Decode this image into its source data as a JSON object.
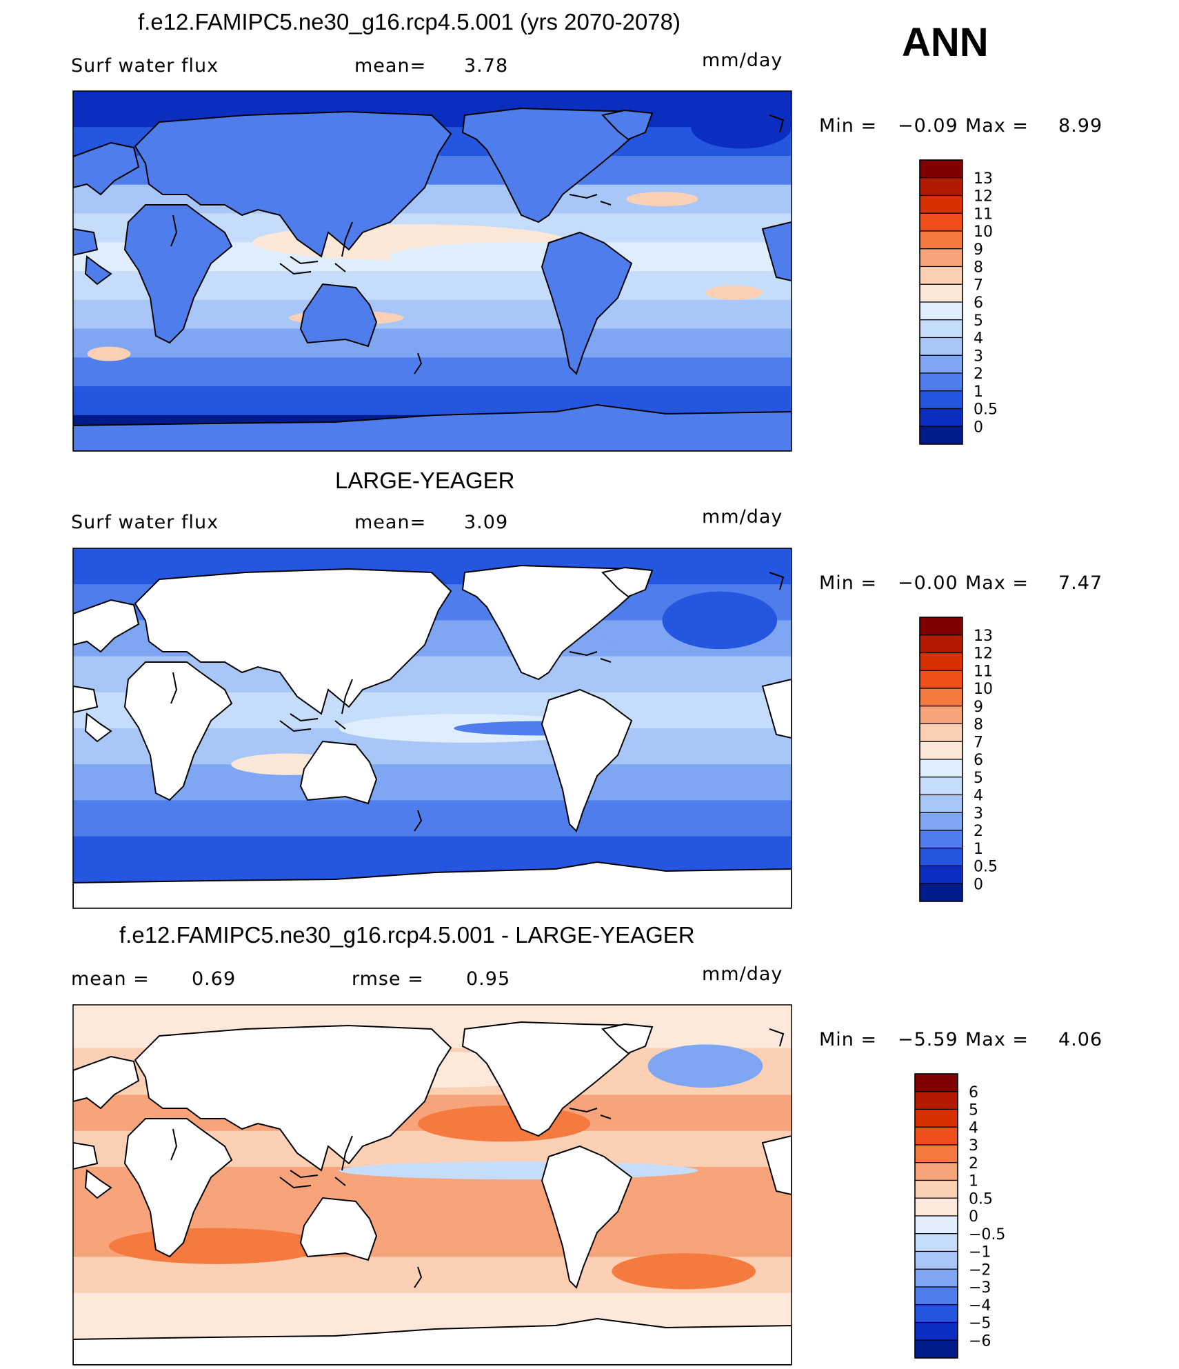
{
  "season": "ANN",
  "units": "mm/day",
  "panels": [
    {
      "title": "f.e12.FAMIPC5.ne30_g16.rcp4.5.001 (yrs 2070-2078)",
      "variable": "Surf water flux",
      "stat1_label": "mean=",
      "stat1_value": "3.78",
      "stat2_label": "",
      "stat2_value": "",
      "units": "mm/day",
      "min_label": "Min =",
      "min_value": "−0.09",
      "max_label": "Max =",
      "max_value": "8.99"
    },
    {
      "title": "LARGE-YEAGER",
      "variable": "Surf water flux",
      "stat1_label": "mean=",
      "stat1_value": "3.09",
      "stat2_label": "",
      "stat2_value": "",
      "units": "mm/day",
      "min_label": "Min =",
      "min_value": "−0.00",
      "max_label": "Max =",
      "max_value": "7.47"
    },
    {
      "title": "f.e12.FAMIPC5.ne30_g16.rcp4.5.001 - LARGE-YEAGER",
      "variable": "",
      "stat1_label": "mean =",
      "stat1_value": "0.69",
      "stat2_label": "rmse =",
      "stat2_value": "0.95",
      "units": "mm/day",
      "min_label": "Min =",
      "min_value": "−5.59",
      "max_label": "Max =",
      "max_value": "4.06"
    }
  ],
  "chart_data": [
    {
      "type": "heatmap",
      "title": "f.e12.FAMIPC5.ne30_g16.rcp4.5.001 (yrs 2070-2078)",
      "variable": "Surf water flux",
      "units": "mm/day",
      "mean": 3.78,
      "min": -0.09,
      "max": 8.99,
      "colorbar": {
        "labels": [
          "13",
          "12",
          "11",
          "10",
          "9",
          "8",
          "7",
          "6",
          "5",
          "4",
          "3",
          "2",
          "1",
          "0.5",
          "0"
        ],
        "colors": [
          "#7f0000",
          "#b31a00",
          "#d93000",
          "#f04e1a",
          "#f57a40",
          "#f7a47a",
          "#fbd0b4",
          "#fbe8d8",
          "#dfeefc",
          "#c5dcfa",
          "#a8c6f8",
          "#7ea6f2",
          "#4f7eec",
          "#2456e0",
          "#0b2ec0",
          "#001c8a"
        ]
      },
      "grid": false
    },
    {
      "type": "heatmap",
      "title": "LARGE-YEAGER",
      "variable": "Surf water flux",
      "units": "mm/day",
      "mean": 3.09,
      "min": -0.0,
      "max": 7.47,
      "colorbar": {
        "labels": [
          "13",
          "12",
          "11",
          "10",
          "9",
          "8",
          "7",
          "6",
          "5",
          "4",
          "3",
          "2",
          "1",
          "0.5",
          "0"
        ],
        "colors": [
          "#7f0000",
          "#b31a00",
          "#d93000",
          "#f04e1a",
          "#f57a40",
          "#f7a47a",
          "#fbd0b4",
          "#fbe8d8",
          "#dfeefc",
          "#c5dcfa",
          "#a8c6f8",
          "#7ea6f2",
          "#4f7eec",
          "#2456e0",
          "#0b2ec0",
          "#001c8a"
        ]
      },
      "grid": false
    },
    {
      "type": "heatmap",
      "title": "f.e12.FAMIPC5.ne30_g16.rcp4.5.001 - LARGE-YEAGER",
      "units": "mm/day",
      "mean": 0.69,
      "rmse": 0.95,
      "min": -5.59,
      "max": 4.06,
      "colorbar": {
        "labels": [
          "6",
          "5",
          "4",
          "3",
          "2",
          "1",
          "0.5",
          "0",
          "−0.5",
          "−1",
          "−2",
          "−3",
          "−4",
          "−5",
          "−6"
        ],
        "colors": [
          "#7f0000",
          "#b31a00",
          "#d93000",
          "#f04e1a",
          "#f57a40",
          "#f7a47a",
          "#fbd0b4",
          "#fde9dc",
          "#e2eefc",
          "#c5dcfa",
          "#a8c6f8",
          "#7ea6f2",
          "#4f7eec",
          "#2456e0",
          "#0b2ec0",
          "#001c8a"
        ]
      },
      "grid": false
    }
  ]
}
